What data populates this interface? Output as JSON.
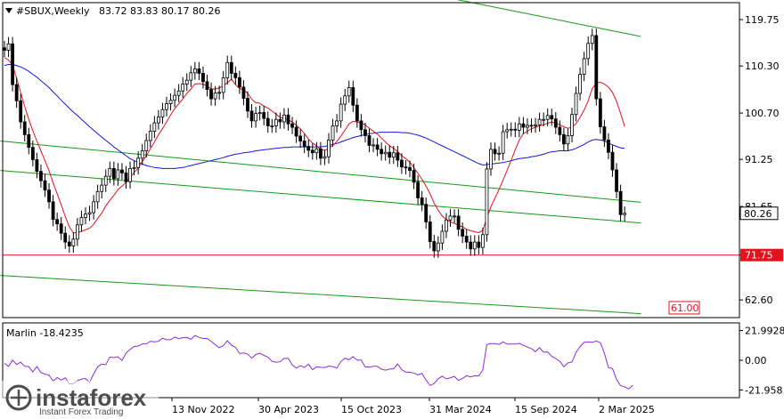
{
  "header": {
    "symbol": "#SBUX,Weekly",
    "ohlc": "83.72 83.83 80.17 80.26",
    "indicator_label": "Marlin -18.4235"
  },
  "watermark": {
    "brand": "instaforex",
    "tagline": "Instant Forex Trading"
  },
  "colors": {
    "candles": "#000000",
    "ma_fast": "#e0141e",
    "ma_slow": "#1414e6",
    "channel": "#139a13",
    "level": "#e0141e",
    "oscillator": "#8a2be2",
    "price_badge": "#ffffff"
  },
  "chart_data": [
    {
      "type": "candlestick",
      "title": "#SBUX,Weekly",
      "y_ticks": [
        119.75,
        110.3,
        100.7,
        91.25,
        81.65,
        71.75,
        62.6
      ],
      "y_tick_labels": [
        "119.75",
        "110.30",
        "100.70",
        "91.25",
        "81.65",
        "71.75",
        "62.60"
      ],
      "ylim": [
        59.0,
        123.2
      ],
      "x_tick_labels": [
        "13 Nov 2022",
        "30 Apr 2023",
        "15 Oct 2023",
        "31 Mar 2024",
        "15 Sep 2024",
        "2 Mar 2025"
      ],
      "current_price": "80.26",
      "levels": [
        {
          "value": 71.75,
          "label": "71.75",
          "color": "#e0141e"
        },
        {
          "value": 61.0,
          "label": "61.00",
          "color": "#e0141e"
        }
      ],
      "series": [
        {
          "kind": "close",
          "values": [
            113.5,
            114.8,
            106.5,
            103.2,
            98.9,
            96.3,
            93.7,
            91.2,
            88.8,
            86.9,
            85.0,
            82.6,
            79.0,
            78.1,
            76.2,
            74.4,
            73.6,
            75.0,
            77.9,
            79.4,
            80.1,
            80.4,
            82.6,
            84.7,
            86.0,
            87.8,
            89.4,
            87.3,
            89.1,
            88.5,
            86.7,
            89.4,
            89.6,
            91.5,
            93.0,
            95.1,
            97.0,
            98.7,
            99.9,
            101.4,
            102.6,
            103.3,
            104.3,
            105.2,
            106.6,
            107.4,
            108.9,
            109.7,
            108.8,
            107.1,
            105.5,
            103.6,
            104.8,
            104.9,
            107.9,
            111.0,
            108.8,
            107.9,
            106.0,
            103.7,
            101.1,
            99.1,
            100.6,
            100.8,
            99.6,
            98.1,
            98.1,
            99.4,
            98.9,
            100.3,
            98.5,
            97.8,
            96.0,
            95.0,
            93.9,
            93.1,
            92.6,
            93.4,
            91.5,
            91.8,
            95.2,
            98.1,
            99.1,
            102.5,
            104.2,
            105.9,
            102.3,
            99.1,
            97.3,
            96.1,
            94.1,
            94.2,
            93.3,
            92.4,
            92.7,
            91.7,
            92.6,
            91.1,
            89.7,
            89.6,
            89.0,
            86.6,
            83.4,
            82.1,
            78.5,
            74.5,
            72.6,
            74.2,
            76.6,
            78.9,
            79.7,
            79.7,
            77.0,
            75.6,
            74.4,
            73.0,
            74.4,
            73.3,
            75.9,
            89.3,
            93.3,
            92.4,
            92.5,
            96.9,
            97.3,
            97.4,
            97.2,
            98.5,
            97.8,
            98.2,
            98.1,
            98.3,
            99.4,
            99.4,
            100.2,
            99.5,
            97.8,
            96.3,
            94.4,
            96.1,
            100.4,
            104.7,
            108.6,
            111.8,
            114.9,
            116.5,
            103.6,
            97.9,
            95.2,
            92.7,
            89.1,
            84.7,
            80.0,
            80.26
          ]
        },
        {
          "kind": "ma_fast",
          "values": [
            112.0,
            111.5,
            110.5,
            107.8,
            104.9,
            102.0,
            99.4,
            97.1,
            95.0,
            93.0,
            91.0,
            88.9,
            86.5,
            84.2,
            82.0,
            79.6,
            77.5,
            76.3,
            76.3,
            76.6,
            76.9,
            77.2,
            78.0,
            79.2,
            80.3,
            81.8,
            82.9,
            83.9,
            85.1,
            85.8,
            86.6,
            87.6,
            88.6,
            89.5,
            90.8,
            92.0,
            93.4,
            94.8,
            96.3,
            97.5,
            98.9,
            100.3,
            101.6,
            102.6,
            103.6,
            104.7,
            105.6,
            106.6,
            106.7,
            106.6,
            106.2,
            105.6,
            105.6,
            105.8,
            106.3,
            106.9,
            107.6,
            106.5,
            105.7,
            105.5,
            104.7,
            103.5,
            102.8,
            102.7,
            102.1,
            101.7,
            101.1,
            100.5,
            99.8,
            99.6,
            99.3,
            98.9,
            98.2,
            97.5,
            96.5,
            95.4,
            94.6,
            94.0,
            93.3,
            93.1,
            93.5,
            94.1,
            94.9,
            96.0,
            97.2,
            98.5,
            99.0,
            98.9,
            98.7,
            98.3,
            97.6,
            97.0,
            96.4,
            95.6,
            94.8,
            94.0,
            93.5,
            92.8,
            92.0,
            91.4,
            90.7,
            89.6,
            88.4,
            87.2,
            85.8,
            84.2,
            82.3,
            80.9,
            79.7,
            79.0,
            78.5,
            78.2,
            77.8,
            77.5,
            77.0,
            76.7,
            76.5,
            76.3,
            76.8,
            79.3,
            81.6,
            83.3,
            85.1,
            87.0,
            89.0,
            91.1,
            93.2,
            95.2,
            96.5,
            97.0,
            97.5,
            97.8,
            98.1,
            98.3,
            98.6,
            98.9,
            98.6,
            98.3,
            97.9,
            97.6,
            97.8,
            98.5,
            99.8,
            101.3,
            103.2,
            105.7,
            106.8,
            107.0,
            106.6,
            106.0,
            104.9,
            103.1,
            100.6,
            98.0
          ]
        },
        {
          "kind": "ma_slow",
          "values": [
            110.4,
            110.6,
            110.6,
            110.4,
            110.1,
            109.7,
            109.2,
            108.6,
            108.0,
            107.3,
            106.6,
            105.9,
            105.0,
            104.2,
            103.3,
            102.5,
            101.7,
            100.9,
            100.2,
            99.4,
            98.7,
            97.9,
            97.2,
            96.5,
            95.8,
            95.1,
            94.5,
            93.8,
            93.2,
            92.6,
            92.0,
            91.4,
            91.0,
            90.6,
            90.3,
            90.0,
            89.8,
            89.6,
            89.5,
            89.4,
            89.4,
            89.4,
            89.4,
            89.5,
            89.6,
            89.8,
            90.0,
            90.2,
            90.4,
            90.6,
            90.8,
            91.0,
            91.2,
            91.4,
            91.6,
            91.9,
            92.1,
            92.3,
            92.4,
            92.6,
            92.7,
            92.8,
            93.0,
            93.1,
            93.2,
            93.3,
            93.4,
            93.5,
            93.6,
            93.7,
            93.7,
            93.8,
            93.8,
            93.8,
            93.8,
            93.8,
            93.8,
            93.8,
            93.8,
            93.9,
            94.1,
            94.3,
            94.5,
            94.8,
            95.1,
            95.4,
            95.7,
            95.9,
            96.1,
            96.3,
            96.5,
            96.6,
            96.7,
            96.8,
            96.8,
            96.8,
            96.8,
            96.8,
            96.7,
            96.7,
            96.6,
            96.4,
            96.2,
            95.9,
            95.6,
            95.2,
            94.8,
            94.4,
            94.0,
            93.6,
            93.2,
            92.8,
            92.4,
            92.0,
            91.6,
            91.2,
            90.8,
            90.4,
            90.1,
            90.2,
            90.3,
            90.4,
            90.5,
            90.6,
            90.8,
            91.0,
            91.2,
            91.4,
            91.5,
            91.6,
            91.8,
            91.9,
            92.1,
            92.3,
            92.6,
            92.8,
            92.9,
            93.0,
            93.0,
            93.0,
            93.2,
            93.5,
            93.9,
            94.3,
            94.8,
            95.2,
            95.3,
            95.2,
            95.0,
            94.6,
            94.2,
            93.9,
            93.6,
            93.5
          ]
        }
      ],
      "channel": {
        "upper_line": {
          "start": {
            "week": -1,
            "price": 142.5
          },
          "end": {
            "week": 157,
            "price": 116.3
          }
        },
        "middle_line_a": {
          "start": {
            "week": -1,
            "price": 95.0
          },
          "end": {
            "week": 157,
            "price": 82.5
          }
        },
        "middle_line_b": {
          "start": {
            "week": -1,
            "price": 89.0
          },
          "end": {
            "week": 157,
            "price": 78.3
          }
        },
        "lower_line": {
          "start": {
            "week": -1,
            "price": 67.6
          },
          "end": {
            "week": 157,
            "price": 59.8
          }
        }
      }
    },
    {
      "type": "line",
      "title": "Marlin -18.4235",
      "y_ticks": [
        21.9928,
        0.0,
        -21.958
      ],
      "y_tick_labels": [
        "21.9928",
        "0.00",
        "-21.958"
      ],
      "ylim": [
        -25.0,
        25.0
      ],
      "series": [
        {
          "name": "Marlin",
          "values": [
            -2.1,
            -4.6,
            0.1,
            -3.1,
            -1.4,
            -4.5,
            -4.7,
            -8.6,
            -4.6,
            -9.1,
            -10.2,
            -11.0,
            -15.4,
            -12.8,
            -14.6,
            -13.0,
            -17.5,
            -17.3,
            -15.1,
            -13.9,
            -13.5,
            -16.4,
            -10.1,
            -4.9,
            -2.8,
            -3.3,
            2.4,
            2.0,
            2.6,
            -0.2,
            5.3,
            8.0,
            10.2,
            10.5,
            12.1,
            12.2,
            14.1,
            13.6,
            14.0,
            16.3,
            15.2,
            15.2,
            17.1,
            16.0,
            16.8,
            16.9,
            15.5,
            18.3,
            17.0,
            16.1,
            16.1,
            14.1,
            11.6,
            9.3,
            10.8,
            14.5,
            11.1,
            9.6,
            5.0,
            5.4,
            4.7,
            1.5,
            4.2,
            5.2,
            3.6,
            2.3,
            -0.8,
            -1.4,
            -1.1,
            1.5,
            1.4,
            -3.5,
            -5.8,
            -4.0,
            -5.3,
            -2.9,
            -7.0,
            -4.8,
            -5.2,
            -5.4,
            -4.3,
            -4.7,
            -5.7,
            -0.9,
            1.6,
            0.4,
            2.7,
            0.1,
            0.1,
            -4.9,
            -5.1,
            -4.5,
            -4.5,
            -6.6,
            -7.3,
            -6.5,
            -6.3,
            -2.7,
            -6.9,
            -8.7,
            -8.9,
            -9.4,
            -10.8,
            -9.7,
            -14.6,
            -18.6,
            -17.2,
            -13.7,
            -11.8,
            -13.8,
            -12.9,
            -11.9,
            -14.9,
            -13.4,
            -11.4,
            -12.3,
            -11.4,
            -11.6,
            -7.2,
            11.6,
            12.3,
            12.3,
            11.8,
            13.6,
            12.0,
            12.0,
            12.1,
            12.5,
            11.1,
            9.8,
            8.6,
            6.4,
            9.3,
            5.9,
            6.2,
            2.9,
            1.3,
            -0.8,
            -4.8,
            -2.0,
            -1.3,
            5.8,
            10.1,
            13.2,
            13.7,
            13.3,
            14.2,
            13.0,
            5.1,
            -5.3,
            -6.1,
            -14.1,
            -18.8,
            -19.6,
            -21.2,
            -18.4
          ]
        }
      ]
    }
  ]
}
